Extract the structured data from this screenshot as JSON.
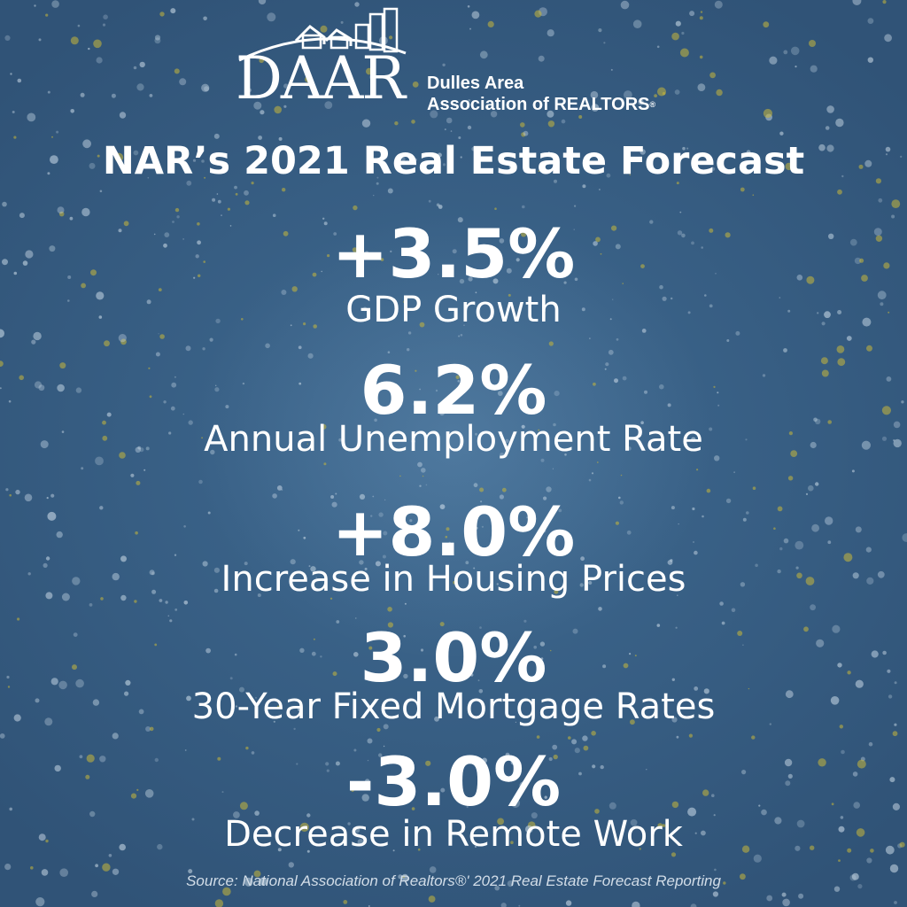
{
  "logo": {
    "wordmark": "DAAR",
    "org_line1": "Dulles Area",
    "org_line2": "Association of REALTORS",
    "registered_mark": "®"
  },
  "title": "NAR’s 2021 Real Estate Forecast",
  "stats": [
    {
      "value": "+3.5%",
      "label": "GDP Growth"
    },
    {
      "value": "6.2%",
      "label": "Annual Unemployment Rate"
    },
    {
      "value": "+8.0%",
      "label": "Increase in Housing Prices"
    },
    {
      "value": "3.0%",
      "label": "30-Year Fixed Mortgage Rates"
    },
    {
      "value": "-3.0%",
      "label": "Decrease in Remote Work"
    }
  ],
  "source": "Source: National Association of Realtors®' 2021 Real Estate Forecast Reporting",
  "colors": {
    "background": "#3f6a91",
    "text": "#ffffff",
    "speckle_light": "#c9d9e6",
    "speckle_yellow": "#c8b83a"
  }
}
